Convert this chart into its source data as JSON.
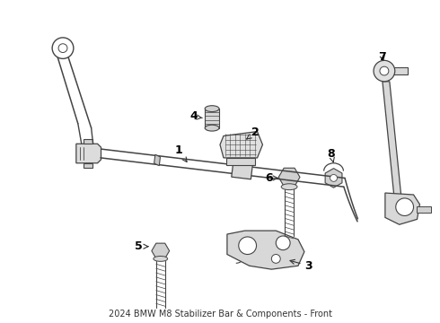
{
  "title": "2024 BMW M8 Stabilizer Bar & Components - Front",
  "background_color": "#ffffff",
  "line_color": "#444444",
  "label_color": "#000000",
  "fig_width": 4.9,
  "fig_height": 3.6,
  "dpi": 100
}
